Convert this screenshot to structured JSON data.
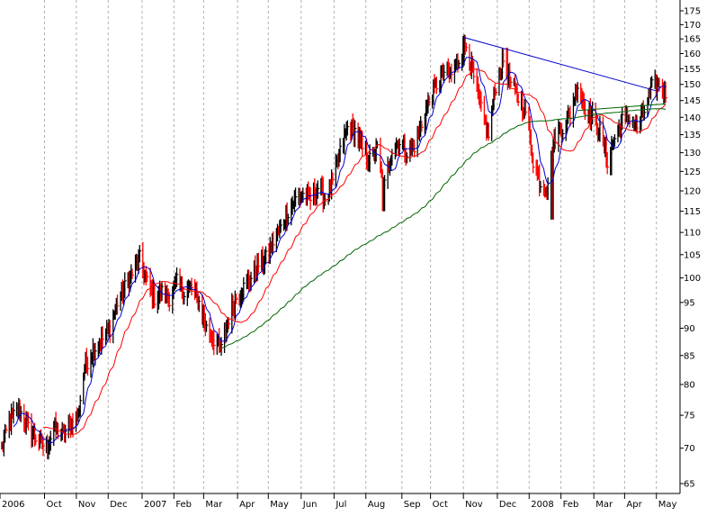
{
  "chart_data": {
    "type": "line",
    "title": "",
    "xlabel": "",
    "ylabel": "",
    "y_scale": "log",
    "ylim": [
      63,
      178
    ],
    "y_ticks": [
      65,
      70,
      75,
      80,
      85,
      90,
      95,
      100,
      105,
      110,
      115,
      120,
      125,
      130,
      135,
      140,
      145,
      150,
      155,
      160,
      165,
      170,
      175
    ],
    "y_tick_labels": [
      "65",
      "70",
      "75",
      "80",
      "85",
      "90",
      "95",
      "100",
      "105",
      "110",
      "115",
      "120",
      "125",
      "130",
      "135",
      "140",
      "145",
      "150",
      "155",
      "160",
      "165",
      "170",
      "175"
    ],
    "x_start": "2006-08-21",
    "x_end": "2008-05-08",
    "x_tick_labels": [
      {
        "label": "2006",
        "date": "2006-08-21"
      },
      {
        "label": "Oct",
        "date": "2006-10-02"
      },
      {
        "label": "Nov",
        "date": "2006-11-01"
      },
      {
        "label": "Dec",
        "date": "2006-12-01"
      },
      {
        "label": "2007",
        "date": "2007-01-02"
      },
      {
        "label": "Feb",
        "date": "2007-02-01"
      },
      {
        "label": "Mar",
        "date": "2007-03-01"
      },
      {
        "label": "Apr",
        "date": "2007-04-02"
      },
      {
        "label": "May",
        "date": "2007-05-01"
      },
      {
        "label": "Jun",
        "date": "2007-06-01"
      },
      {
        "label": "Jul",
        "date": "2007-07-02"
      },
      {
        "label": "Aug",
        "date": "2007-08-01"
      },
      {
        "label": "Sep",
        "date": "2007-09-04"
      },
      {
        "label": "Oct",
        "date": "2007-10-01"
      },
      {
        "label": "Nov",
        "date": "2007-11-01"
      },
      {
        "label": "Dec",
        "date": "2007-12-03"
      },
      {
        "label": "2008",
        "date": "2008-01-02"
      },
      {
        "label": "Feb",
        "date": "2008-02-01"
      },
      {
        "label": "Mar",
        "date": "2008-03-03"
      },
      {
        "label": "Apr",
        "date": "2008-04-01"
      },
      {
        "label": "May",
        "date": "2008-05-01"
      }
    ],
    "grid": true,
    "price_anchors": [
      [
        "2006-08-21",
        70
      ],
      [
        "2006-08-28",
        74
      ],
      [
        "2006-09-06",
        76
      ],
      [
        "2006-09-15",
        73
      ],
      [
        "2006-09-25",
        71
      ],
      [
        "2006-10-02",
        70
      ],
      [
        "2006-10-09",
        73
      ],
      [
        "2006-10-18",
        72
      ],
      [
        "2006-10-27",
        74
      ],
      [
        "2006-11-01",
        75
      ],
      [
        "2006-11-07",
        83
      ],
      [
        "2006-11-15",
        86
      ],
      [
        "2006-11-24",
        88
      ],
      [
        "2006-12-01",
        90
      ],
      [
        "2006-12-08",
        95
      ],
      [
        "2006-12-15",
        98
      ],
      [
        "2006-12-22",
        101
      ],
      [
        "2006-12-29",
        104
      ],
      [
        "2007-01-05",
        99
      ],
      [
        "2007-01-12",
        96
      ],
      [
        "2007-01-19",
        97
      ],
      [
        "2007-01-26",
        96
      ],
      [
        "2007-02-02",
        99
      ],
      [
        "2007-02-09",
        97
      ],
      [
        "2007-02-16",
        98
      ],
      [
        "2007-02-23",
        95
      ],
      [
        "2007-03-02",
        90
      ],
      [
        "2007-03-09",
        88
      ],
      [
        "2007-03-16",
        86
      ],
      [
        "2007-03-23",
        92
      ],
      [
        "2007-03-30",
        96
      ],
      [
        "2007-04-06",
        98
      ],
      [
        "2007-04-13",
        100
      ],
      [
        "2007-04-20",
        103
      ],
      [
        "2007-04-27",
        104
      ],
      [
        "2007-05-04",
        108
      ],
      [
        "2007-05-11",
        111
      ],
      [
        "2007-05-18",
        115
      ],
      [
        "2007-05-25",
        118
      ],
      [
        "2007-06-01",
        119
      ],
      [
        "2007-06-08",
        118
      ],
      [
        "2007-06-15",
        121
      ],
      [
        "2007-06-22",
        118
      ],
      [
        "2007-06-29",
        122
      ],
      [
        "2007-07-06",
        130
      ],
      [
        "2007-07-13",
        137
      ],
      [
        "2007-07-20",
        136
      ],
      [
        "2007-07-27",
        131
      ],
      [
        "2007-08-03",
        128
      ],
      [
        "2007-08-10",
        131
      ],
      [
        "2007-08-16",
        120
      ],
      [
        "2007-08-24",
        131
      ],
      [
        "2007-08-31",
        133
      ],
      [
        "2007-09-07",
        130
      ],
      [
        "2007-09-14",
        132
      ],
      [
        "2007-09-21",
        138
      ],
      [
        "2007-09-28",
        145
      ],
      [
        "2007-10-05",
        150
      ],
      [
        "2007-10-12",
        154
      ],
      [
        "2007-10-19",
        153
      ],
      [
        "2007-10-26",
        158
      ],
      [
        "2007-11-02",
        163
      ],
      [
        "2007-11-09",
        152
      ],
      [
        "2007-11-16",
        142
      ],
      [
        "2007-11-23",
        135
      ],
      [
        "2007-11-30",
        150
      ],
      [
        "2007-12-07",
        158
      ],
      [
        "2007-12-14",
        150
      ],
      [
        "2007-12-21",
        146
      ],
      [
        "2007-12-28",
        142
      ],
      [
        "2008-01-04",
        128
      ],
      [
        "2008-01-11",
        122
      ],
      [
        "2008-01-17",
        121
      ],
      [
        "2008-01-25",
        135
      ],
      [
        "2008-02-01",
        137
      ],
      [
        "2008-02-08",
        141
      ],
      [
        "2008-02-15",
        150
      ],
      [
        "2008-02-22",
        143
      ],
      [
        "2008-02-29",
        140
      ],
      [
        "2008-03-07",
        136
      ],
      [
        "2008-03-14",
        128
      ],
      [
        "2008-03-21",
        134
      ],
      [
        "2008-03-28",
        139
      ],
      [
        "2008-04-04",
        140
      ],
      [
        "2008-04-11",
        137
      ],
      [
        "2008-04-18",
        142
      ],
      [
        "2008-04-25",
        149
      ],
      [
        "2008-05-02",
        150
      ],
      [
        "2008-05-08",
        147
      ]
    ],
    "spikes": [
      {
        "date": "2006-12-27",
        "value": 105
      },
      {
        "date": "2007-08-16",
        "value": 115
      },
      {
        "date": "2007-10-31",
        "value": 166
      },
      {
        "date": "2007-12-10",
        "value": 162
      },
      {
        "date": "2008-01-22",
        "value": 113
      },
      {
        "date": "2008-03-17",
        "value": 124
      }
    ],
    "series": [
      {
        "color": "#0000cc",
        "style": "price-bars",
        "up_color": "#000000",
        "down_color": "#ff0000"
      },
      {
        "color": "#0000cc",
        "style": "moving-average",
        "period": 10
      },
      {
        "color": "#ff0000",
        "style": "moving-average",
        "period": 30
      },
      {
        "color": "#006400",
        "style": "moving-average",
        "period": 150
      }
    ],
    "trendlines": [
      {
        "color": "#0000cc",
        "points": [
          [
            "2007-10-31",
            165.5
          ],
          [
            "2008-04-29",
            148
          ]
        ]
      },
      {
        "color": "#006400",
        "points": [
          [
            "2008-02-15",
            142
          ],
          [
            "2008-05-08",
            144
          ]
        ]
      }
    ],
    "colors": {
      "background": "#ffffff",
      "grid": "#b0b0b0",
      "axis": "#000000"
    }
  }
}
